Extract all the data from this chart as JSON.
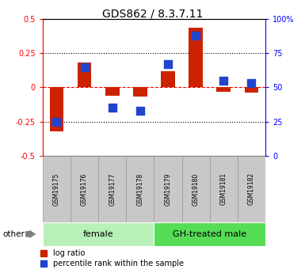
{
  "title": "GDS862 / 8.3.7.11",
  "samples": [
    "GSM19175",
    "GSM19176",
    "GSM19177",
    "GSM19178",
    "GSM19179",
    "GSM19180",
    "GSM19181",
    "GSM19182"
  ],
  "log_ratio": [
    -0.32,
    0.18,
    -0.06,
    -0.07,
    0.12,
    0.44,
    -0.03,
    -0.04
  ],
  "percentile_rank": [
    25,
    65,
    35,
    33,
    67,
    88,
    55,
    53
  ],
  "groups": [
    {
      "label": "female",
      "samples": [
        0,
        1,
        2,
        3
      ],
      "color": "#B8F0B8"
    },
    {
      "label": "GH-treated male",
      "samples": [
        4,
        5,
        6,
        7
      ],
      "color": "#55DD55"
    }
  ],
  "ylim_left": [
    -0.5,
    0.5
  ],
  "ylim_right": [
    0,
    100
  ],
  "yticks_left": [
    -0.5,
    -0.25,
    0,
    0.25,
    0.5
  ],
  "yticks_right": [
    0,
    25,
    50,
    75,
    100
  ],
  "ytick_labels_right": [
    "0",
    "25",
    "50",
    "75",
    "100%"
  ],
  "hlines_dotted": [
    -0.25,
    0.25
  ],
  "hline_dashed": 0,
  "bar_color": "#CC2200",
  "dot_color": "#2244CC",
  "bar_width": 0.5,
  "dot_size": 45,
  "other_label": "other",
  "legend_log_ratio": "log ratio",
  "legend_percentile": "percentile rank within the sample",
  "sample_box_color": "#C8C8C8",
  "sample_box_edge": "#999999",
  "title_fontsize": 10,
  "tick_fontsize": 7,
  "sample_fontsize": 5.5,
  "group_fontsize": 8,
  "legend_fontsize": 7
}
